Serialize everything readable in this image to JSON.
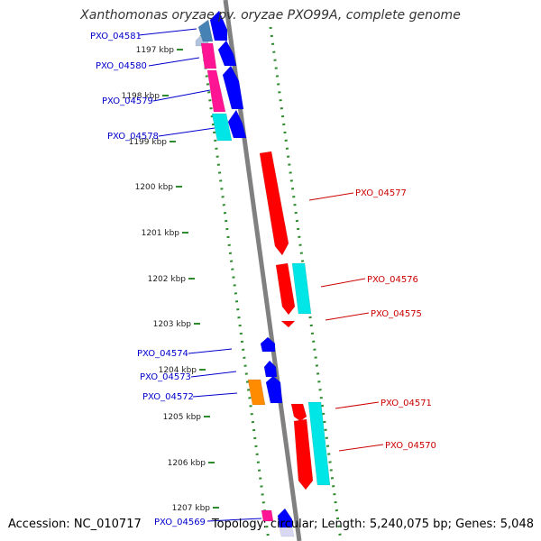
{
  "title": "Xanthomonas oryzae pv. oryzae PXO99A, complete genome",
  "accession": "Accession: NC_010717",
  "topology": "Topology: circular; Length: 5,240,075 bp; Genes: 5,048",
  "colors": {
    "backbone": "#808080",
    "tick_marks": "#2e8b2e",
    "forward_label": "#0000cc",
    "reverse_label": "#cc0000",
    "red": "#ff0000",
    "blue": "#0000ff",
    "cyan": "#00e5e5",
    "magenta": "#ff1493",
    "orange": "#ff8c00",
    "steelblue": "#4682b4",
    "lightblue": "#b0c4de",
    "pink": "#ff69b4",
    "lavender": "#d8d8f5"
  },
  "kbp_labels": [
    "1197 kbp",
    "1198 kbp",
    "1199 kbp",
    "1200 kbp",
    "1201 kbp",
    "1202 kbp",
    "1203 kbp",
    "1204 kbp",
    "1205 kbp",
    "1206 kbp",
    "1207 kbp"
  ],
  "forward_genes": [
    "PXO_04581",
    "PXO_04580",
    "PXO_04579",
    "PXO_04578",
    "PXO_04574",
    "PXO_04573",
    "PXO_04572",
    "PXO_04569"
  ],
  "reverse_genes": [
    "PXO_04577",
    "PXO_04576",
    "PXO_04575",
    "PXO_04571",
    "PXO_04570"
  ]
}
